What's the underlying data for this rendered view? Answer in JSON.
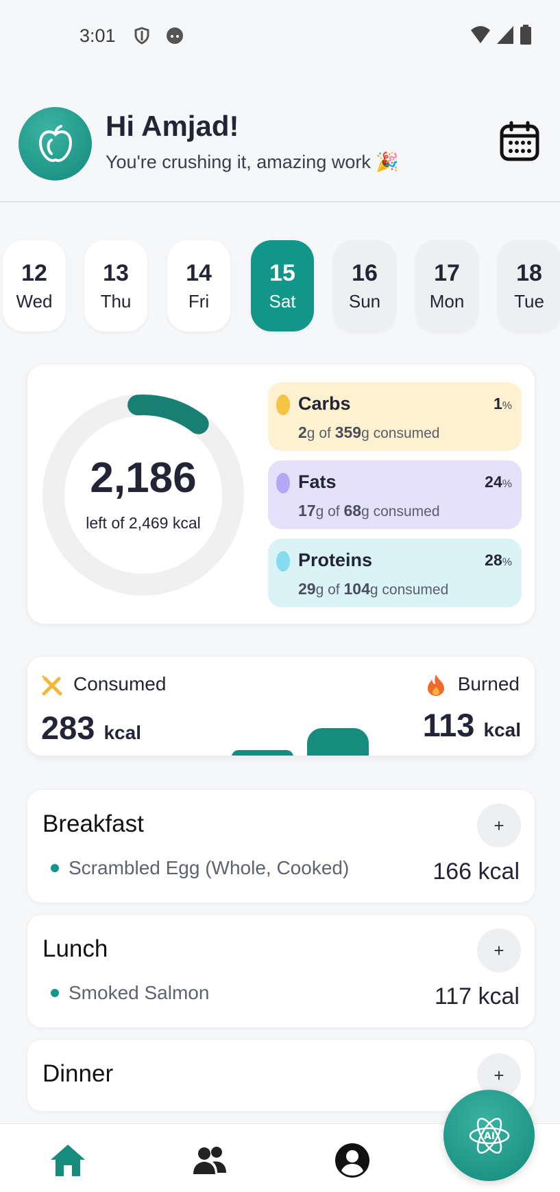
{
  "status_bar": {
    "time": "3:01"
  },
  "header": {
    "greeting": "Hi Amjad!",
    "subtitle": "You're crushing it, amazing work 🎉"
  },
  "days": [
    {
      "num": "12",
      "name": "Wed",
      "state": "past"
    },
    {
      "num": "13",
      "name": "Thu",
      "state": "past"
    },
    {
      "num": "14",
      "name": "Fri",
      "state": "past"
    },
    {
      "num": "15",
      "name": "Sat",
      "state": "selected"
    },
    {
      "num": "16",
      "name": "Sun",
      "state": "future"
    },
    {
      "num": "17",
      "name": "Mon",
      "state": "future"
    },
    {
      "num": "18",
      "name": "Tue",
      "state": "future"
    }
  ],
  "summary": {
    "remaining": "2,186",
    "remaining_label": "left of 2,469 kcal",
    "progress_fraction": 0.115,
    "macros": [
      {
        "name": "Carbs",
        "pct": "1",
        "pct_unit": "%",
        "consumed": "2",
        "total": "359",
        "unit": "g",
        "of": "of",
        "suffix": "consumed",
        "bg": "#fdf1cf",
        "dot": "#f6c445"
      },
      {
        "name": "Fats",
        "pct": "24",
        "pct_unit": "%",
        "consumed": "17",
        "total": "68",
        "unit": "g",
        "of": "of",
        "suffix": "consumed",
        "bg": "#e5e1fb",
        "dot": "#b3a7f6"
      },
      {
        "name": "Proteins",
        "pct": "28",
        "pct_unit": "%",
        "consumed": "29",
        "total": "104",
        "unit": "g",
        "of": "of",
        "suffix": "consumed",
        "bg": "#d9f3f7",
        "dot": "#86dcee"
      }
    ]
  },
  "energy": {
    "consumed_label": "Consumed",
    "consumed_value": "283",
    "burned_label": "Burned",
    "burned_value": "113",
    "unit": "kcal"
  },
  "meals": [
    {
      "title": "Breakfast",
      "add": "+",
      "item": "Scrambled Egg (Whole, Cooked)",
      "kcal": "166 kcal"
    },
    {
      "title": "Lunch",
      "add": "+",
      "item": "Smoked Salmon",
      "kcal": "117 kcal"
    },
    {
      "title": "Dinner",
      "add": "+"
    }
  ],
  "colors": {
    "accent": "#13968a",
    "text": "#232536"
  },
  "icons": {
    "header": [
      "apple-logo-icon",
      "calendar-icon"
    ],
    "status": [
      "shield-icon",
      "face-icon",
      "wifi-icon",
      "signal-icon",
      "battery-icon"
    ],
    "energy": [
      "fork-knife-icon",
      "flame-icon"
    ],
    "nav": [
      "home-icon",
      "community-icon",
      "profile-icon",
      "ai-atom-icon"
    ]
  }
}
